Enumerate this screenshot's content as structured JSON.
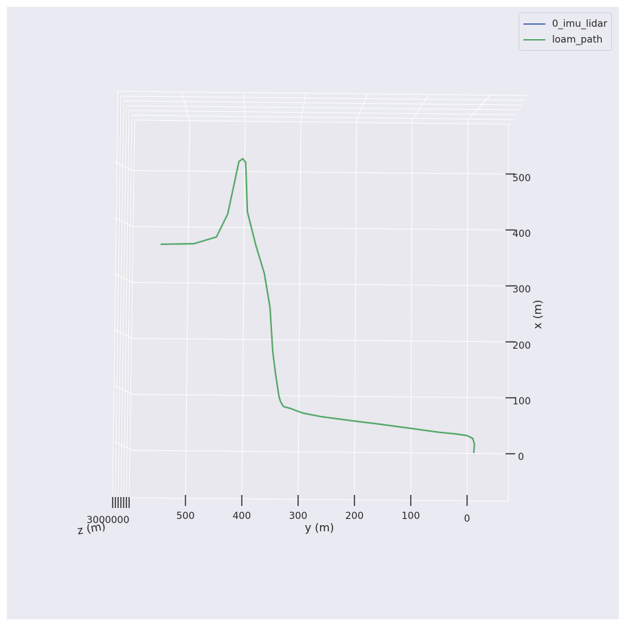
{
  "chart_data": {
    "type": "line",
    "title": "",
    "xlabel": "y (m)",
    "ylabel": "x (m)",
    "zlabel": "z (m)",
    "y_axis_ticks": [
      "500",
      "400",
      "300",
      "200",
      "100",
      "0"
    ],
    "x_axis_ticks": [
      "500",
      "400",
      "300",
      "200",
      "100",
      "0"
    ],
    "z_axis_tick_text": "3000000",
    "grid": true,
    "legend_position": "top-right",
    "series": [
      {
        "name": "0_imu_lidar",
        "color": "#4c72b0",
        "y": [
          -12,
          -13,
          -10,
          0,
          20,
          50,
          100,
          160,
          200,
          260,
          290,
          302,
          312,
          326,
          331,
          334,
          340,
          345,
          350,
          360,
          375,
          390,
          393,
          398,
          405,
          425,
          445,
          485,
          543
        ],
        "x": [
          0,
          15,
          25,
          30,
          33,
          36,
          43,
          51,
          56,
          64,
          70,
          74,
          78,
          82,
          90,
          100,
          140,
          180,
          260,
          320,
          370,
          430,
          518,
          525,
          520,
          426,
          385,
          373,
          372
        ]
      },
      {
        "name": "loam_path",
        "color": "#55a868",
        "y": [
          -12,
          -13,
          -10,
          0,
          20,
          50,
          100,
          160,
          200,
          260,
          290,
          302,
          312,
          326,
          331,
          334,
          340,
          345,
          350,
          360,
          375,
          390,
          393,
          398,
          405,
          425,
          445,
          485,
          543
        ],
        "x": [
          0,
          15,
          25,
          30,
          33,
          36,
          43,
          51,
          56,
          64,
          70,
          74,
          78,
          82,
          90,
          100,
          140,
          180,
          260,
          320,
          370,
          430,
          518,
          525,
          520,
          426,
          385,
          373,
          372
        ]
      }
    ]
  }
}
